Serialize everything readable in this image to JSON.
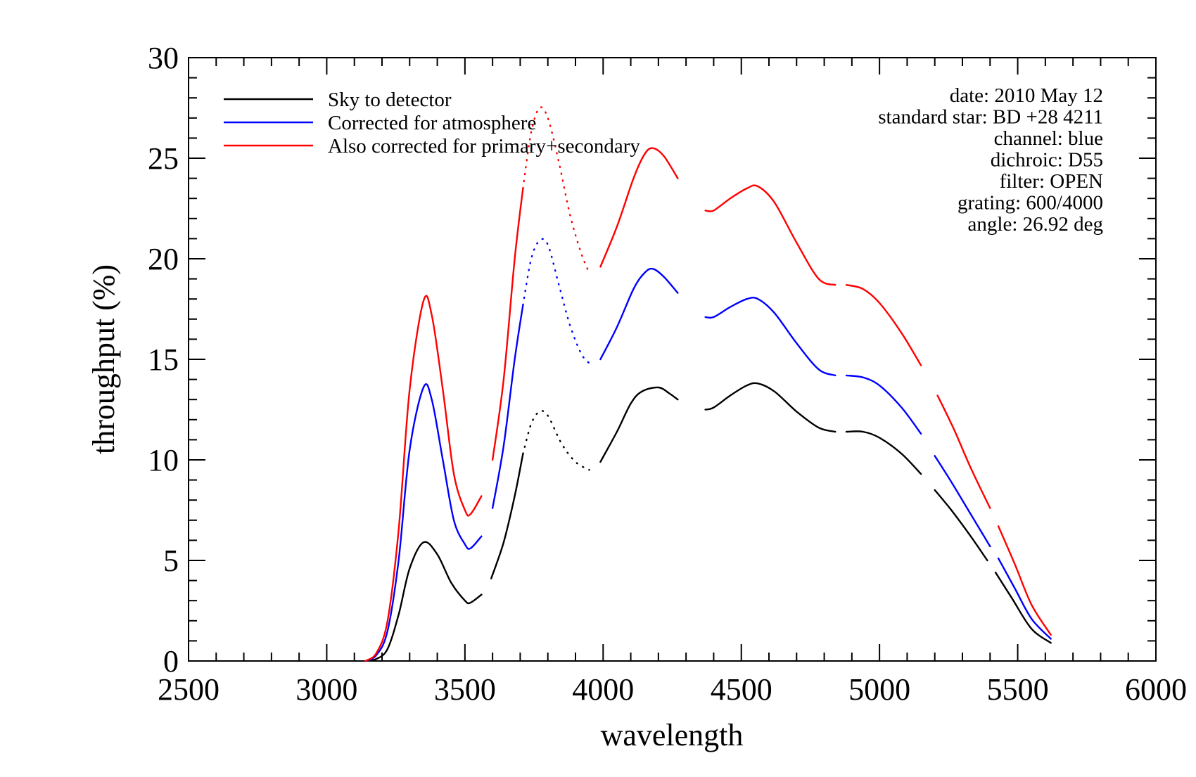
{
  "chart_data": {
    "type": "line",
    "xlabel": "wavelength",
    "ylabel": "throughput (%)",
    "xlim": [
      2500,
      6000
    ],
    "ylim": [
      0,
      30
    ],
    "x_ticks": [
      "2500",
      "3000",
      "3500",
      "4000",
      "4500",
      "5000",
      "5500",
      "6000"
    ],
    "y_ticks": [
      "0",
      "5",
      "10",
      "15",
      "20",
      "25",
      "30"
    ],
    "grid": false,
    "legend_position": "top-left",
    "annotations": [
      "date: 2010 May 12",
      "standard star: BD +28 4211",
      "channel: blue",
      "dichroic: D55",
      "filter: OPEN",
      "grating: 600/4000",
      "angle: 26.92 deg"
    ],
    "series": [
      {
        "name": "Sky to detector",
        "color": "#000000",
        "segments": [
          {
            "style": "solid",
            "points": [
              [
                3140,
                0
              ],
              [
                3180,
                0.1
              ],
              [
                3220,
                0.6
              ],
              [
                3260,
                2.3
              ],
              [
                3300,
                4.6
              ],
              [
                3350,
                5.9
              ],
              [
                3400,
                5.3
              ],
              [
                3450,
                3.9
              ],
              [
                3500,
                3.0
              ],
              [
                3520,
                2.9
              ],
              [
                3560,
                3.3
              ]
            ]
          },
          {
            "style": "solid",
            "points": [
              [
                3595,
                4.1
              ],
              [
                3640,
                5.9
              ],
              [
                3680,
                8.2
              ],
              [
                3710,
                10.3
              ]
            ]
          },
          {
            "style": "dotted",
            "points": [
              [
                3710,
                10.3
              ],
              [
                3740,
                11.8
              ],
              [
                3770,
                12.4
              ],
              [
                3800,
                12.2
              ],
              [
                3850,
                10.8
              ],
              [
                3900,
                9.9
              ],
              [
                3950,
                9.5
              ]
            ]
          },
          {
            "style": "solid",
            "points": [
              [
                3990,
                9.9
              ],
              [
                4050,
                11.4
              ],
              [
                4100,
                12.8
              ],
              [
                4140,
                13.4
              ],
              [
                4200,
                13.6
              ],
              [
                4240,
                13.3
              ],
              [
                4270,
                13.0
              ]
            ]
          },
          {
            "style": "solid",
            "points": [
              [
                4370,
                12.5
              ],
              [
                4400,
                12.6
              ],
              [
                4460,
                13.2
              ],
              [
                4520,
                13.7
              ],
              [
                4560,
                13.8
              ],
              [
                4620,
                13.4
              ],
              [
                4700,
                12.4
              ],
              [
                4780,
                11.6
              ],
              [
                4840,
                11.4
              ]
            ]
          },
          {
            "style": "solid",
            "points": [
              [
                4880,
                11.4
              ],
              [
                4940,
                11.4
              ],
              [
                5000,
                11.1
              ],
              [
                5080,
                10.3
              ],
              [
                5150,
                9.3
              ]
            ]
          },
          {
            "style": "solid",
            "points": [
              [
                5200,
                8.5
              ],
              [
                5260,
                7.5
              ],
              [
                5330,
                6.2
              ],
              [
                5390,
                5.0
              ]
            ]
          },
          {
            "style": "solid",
            "points": [
              [
                5420,
                4.4
              ],
              [
                5480,
                3.1
              ],
              [
                5550,
                1.6
              ],
              [
                5620,
                0.9
              ]
            ]
          }
        ]
      },
      {
        "name": "Corrected for atmosphere",
        "color": "#0000ff",
        "segments": [
          {
            "style": "solid",
            "points": [
              [
                3140,
                0
              ],
              [
                3180,
                0.3
              ],
              [
                3220,
                1.5
              ],
              [
                3260,
                5.0
              ],
              [
                3300,
                10.5
              ],
              [
                3350,
                13.6
              ],
              [
                3380,
                13.0
              ],
              [
                3420,
                10.0
              ],
              [
                3460,
                7.0
              ],
              [
                3500,
                5.8
              ],
              [
                3520,
                5.6
              ],
              [
                3560,
                6.2
              ]
            ]
          },
          {
            "style": "solid",
            "points": [
              [
                3600,
                7.6
              ],
              [
                3640,
                10.7
              ],
              [
                3680,
                15.0
              ],
              [
                3710,
                17.7
              ]
            ]
          },
          {
            "style": "dotted",
            "points": [
              [
                3710,
                17.7
              ],
              [
                3740,
                20.0
              ],
              [
                3770,
                20.9
              ],
              [
                3800,
                20.7
              ],
              [
                3840,
                18.7
              ],
              [
                3880,
                16.7
              ],
              [
                3920,
                15.3
              ],
              [
                3950,
                14.8
              ]
            ]
          },
          {
            "style": "solid",
            "points": [
              [
                3990,
                15.0
              ],
              [
                4050,
                16.6
              ],
              [
                4110,
                18.5
              ],
              [
                4150,
                19.3
              ],
              [
                4180,
                19.5
              ],
              [
                4220,
                19.1
              ],
              [
                4270,
                18.3
              ]
            ]
          },
          {
            "style": "solid",
            "points": [
              [
                4370,
                17.1
              ],
              [
                4400,
                17.1
              ],
              [
                4460,
                17.6
              ],
              [
                4520,
                18.0
              ],
              [
                4560,
                18.0
              ],
              [
                4620,
                17.3
              ],
              [
                4700,
                15.8
              ],
              [
                4780,
                14.5
              ],
              [
                4840,
                14.2
              ]
            ]
          },
          {
            "style": "solid",
            "points": [
              [
                4880,
                14.2
              ],
              [
                4940,
                14.1
              ],
              [
                5000,
                13.7
              ],
              [
                5080,
                12.6
              ],
              [
                5150,
                11.3
              ]
            ]
          },
          {
            "style": "solid",
            "points": [
              [
                5200,
                10.2
              ],
              [
                5260,
                8.9
              ],
              [
                5330,
                7.3
              ],
              [
                5400,
                5.7
              ]
            ]
          },
          {
            "style": "solid",
            "points": [
              [
                5430,
                5.1
              ],
              [
                5490,
                3.6
              ],
              [
                5550,
                2.1
              ],
              [
                5620,
                1.1
              ]
            ]
          }
        ]
      },
      {
        "name": "Also corrected for primary+secondary",
        "color": "#ff0000",
        "segments": [
          {
            "style": "solid",
            "points": [
              [
                3140,
                0
              ],
              [
                3180,
                0.4
              ],
              [
                3220,
                2.0
              ],
              [
                3260,
                6.5
              ],
              [
                3300,
                13.5
              ],
              [
                3350,
                17.9
              ],
              [
                3380,
                17.2
              ],
              [
                3420,
                13.5
              ],
              [
                3460,
                9.3
              ],
              [
                3500,
                7.5
              ],
              [
                3520,
                7.3
              ],
              [
                3560,
                8.2
              ]
            ]
          },
          {
            "style": "solid",
            "points": [
              [
                3600,
                10.0
              ],
              [
                3640,
                14.0
              ],
              [
                3680,
                20.0
              ],
              [
                3710,
                23.5
              ]
            ]
          },
          {
            "style": "dotted",
            "points": [
              [
                3710,
                23.5
              ],
              [
                3740,
                26.3
              ],
              [
                3770,
                27.5
              ],
              [
                3800,
                27.0
              ],
              [
                3840,
                24.8
              ],
              [
                3880,
                22.2
              ],
              [
                3920,
                20.3
              ],
              [
                3950,
                19.3
              ]
            ]
          },
          {
            "style": "solid",
            "points": [
              [
                3990,
                19.6
              ],
              [
                4050,
                21.6
              ],
              [
                4110,
                24.0
              ],
              [
                4150,
                25.2
              ],
              [
                4180,
                25.5
              ],
              [
                4220,
                25.1
              ],
              [
                4270,
                24.0
              ]
            ]
          },
          {
            "style": "solid",
            "points": [
              [
                4370,
                22.4
              ],
              [
                4400,
                22.4
              ],
              [
                4460,
                23.0
              ],
              [
                4520,
                23.5
              ],
              [
                4560,
                23.6
              ],
              [
                4620,
                22.8
              ],
              [
                4700,
                20.8
              ],
              [
                4780,
                19.0
              ],
              [
                4840,
                18.7
              ]
            ]
          },
          {
            "style": "solid",
            "points": [
              [
                4880,
                18.7
              ],
              [
                4940,
                18.5
              ],
              [
                5000,
                17.8
              ],
              [
                5080,
                16.3
              ],
              [
                5150,
                14.7
              ]
            ]
          },
          {
            "style": "solid",
            "points": [
              [
                5210,
                13.2
              ],
              [
                5270,
                11.5
              ],
              [
                5330,
                9.6
              ],
              [
                5400,
                7.6
              ]
            ]
          },
          {
            "style": "solid",
            "points": [
              [
                5430,
                6.7
              ],
              [
                5490,
                4.8
              ],
              [
                5550,
                2.8
              ],
              [
                5620,
                1.3
              ]
            ]
          }
        ]
      }
    ]
  }
}
